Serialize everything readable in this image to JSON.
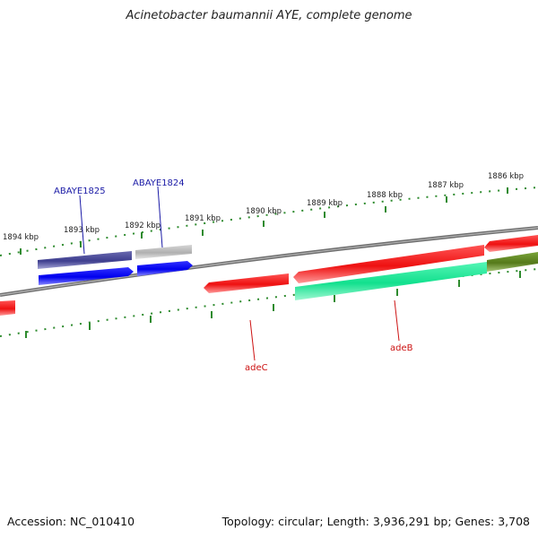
{
  "title": "Acinetobacter baumannii AYE, complete genome",
  "footer": {
    "accession": "Accession: NC_010410",
    "summary": "Topology: circular; Length: 3,936,291 bp; Genes: 3,708"
  },
  "ruler": {
    "color": "#2e8b2e",
    "labels": [
      "1894 kbp",
      "1893 kbp",
      "1892 kbp",
      "1891 kbp",
      "1890 kbp",
      "1889 kbp",
      "1888 kbp",
      "1887 kbp",
      "1886 kbp"
    ]
  },
  "backbone": {
    "color": "#7a7a7a"
  },
  "genes": [
    {
      "id": "ABAYE1825",
      "label": "ABAYE1825",
      "label_color": "#1a1aa6"
    },
    {
      "id": "ABAYE1824",
      "label": "ABAYE1824",
      "label_color": "#1a1aa6"
    },
    {
      "id": "adeC",
      "label": "adeC",
      "label_color": "#cc1111"
    },
    {
      "id": "adeB",
      "label": "adeB",
      "label_color": "#cc1111"
    }
  ],
  "feature_colors": {
    "dark_blue": "#4a4a9a",
    "gray": "#b8b8b8",
    "blue": "#0000ee",
    "red": "#ee1111",
    "teal": "#1aee9a",
    "olive": "#5f8a20"
  }
}
